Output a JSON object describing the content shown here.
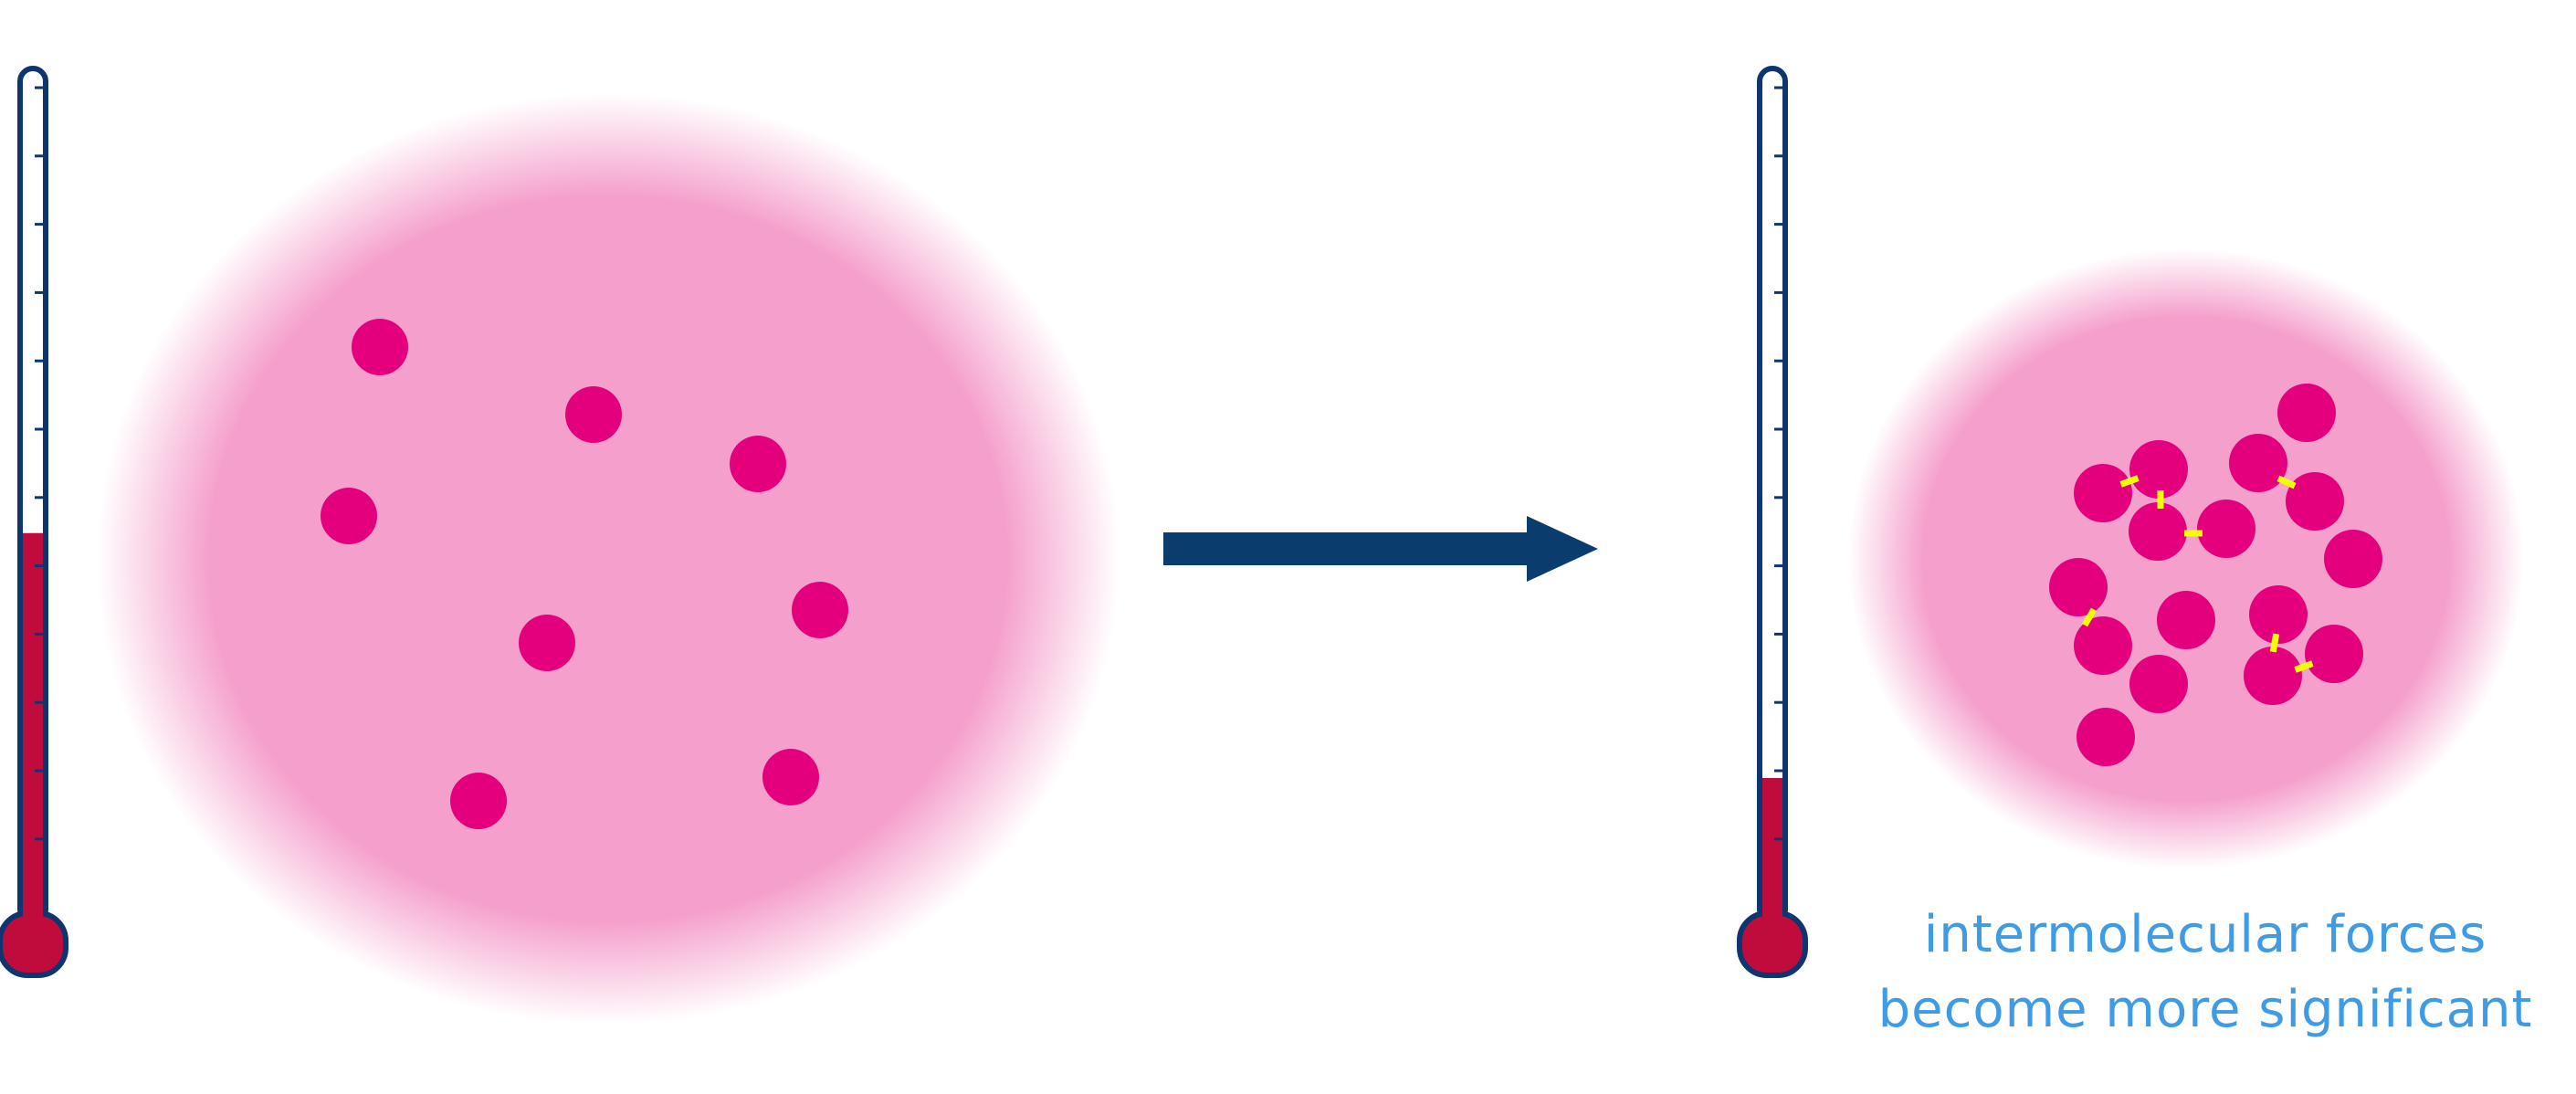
{
  "before": {
    "thermometer_level": 0.45,
    "particle_count": 8,
    "bonds_shown": false
  },
  "after": {
    "thermometer_level": 0.16,
    "particle_count": 16,
    "bonds_shown": true,
    "caption_line1": "intermolecular forces",
    "caption_line2": "become more significant"
  },
  "colors": {
    "thermometer_outline": "#0d3670",
    "thermometer_fill": "#c00c3c",
    "cloud": "#f5a0cc",
    "particle": "#e4007d",
    "bond": "#f2ff00",
    "arrow": "#0a3d6e",
    "caption": "#3f9be4"
  }
}
